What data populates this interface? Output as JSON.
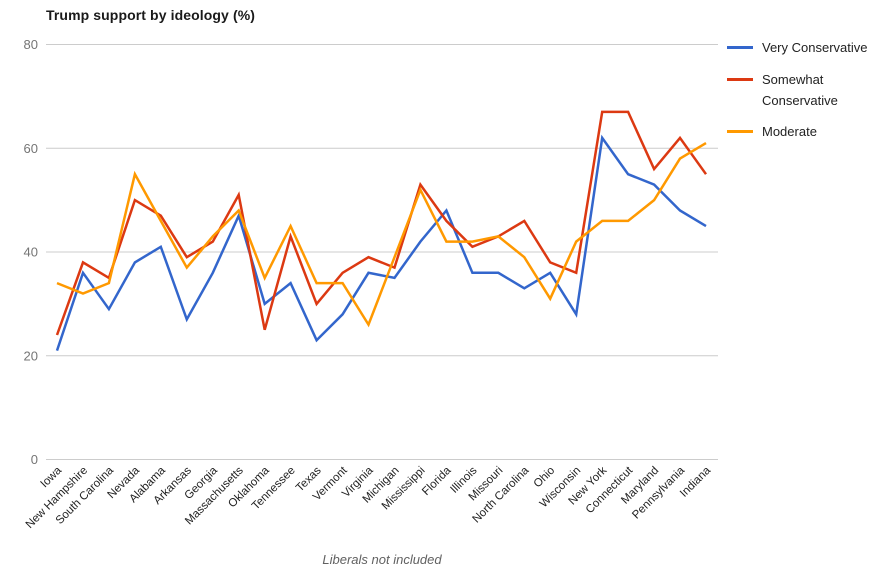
{
  "title": "Trump support by ideology (%)",
  "caption": "Liberals not included",
  "chart_data": {
    "type": "line",
    "title": "Trump support by ideology (%)",
    "annotation": "Liberals not included",
    "xlabel": "",
    "ylabel": "",
    "ylim": [
      0,
      80
    ],
    "y_ticks": [
      0,
      20,
      40,
      60,
      80
    ],
    "grid": "horizontal",
    "legend_position": "right",
    "gridline_color": "#cccccc",
    "y_tick_color": "#757575",
    "x_tick_color": "#222222",
    "categories": [
      "Iowa",
      "New Hampshire",
      "South Carolina",
      "Nevada",
      "Alabama",
      "Arkansas",
      "Georgia",
      "Massachusetts",
      "Oklahoma",
      "Tennessee",
      "Texas",
      "Vermont",
      "Virginia",
      "Michigan",
      "Mississippi",
      "Florida",
      "Illinois",
      "Missouri",
      "North Carolina",
      "Ohio",
      "Wisconsin",
      "New York",
      "Connecticut",
      "Maryland",
      "Pennsylvania",
      "Indiana"
    ],
    "series": [
      {
        "name": "Very Conservative",
        "color": "#3366CC",
        "values": [
          21,
          36,
          29,
          38,
          41,
          27,
          36,
          47,
          30,
          34,
          23,
          28,
          36,
          35,
          42,
          48,
          36,
          36,
          33,
          36,
          28,
          62,
          55,
          53,
          48,
          45
        ]
      },
      {
        "name": "Somewhat Conservative",
        "color": "#DC3912",
        "values": [
          24,
          38,
          35,
          50,
          47,
          39,
          42,
          51,
          25,
          43,
          30,
          36,
          39,
          37,
          53,
          46,
          41,
          43,
          46,
          38,
          36,
          67,
          67,
          56,
          62,
          55
        ]
      },
      {
        "name": "Moderate",
        "color": "#FF9900",
        "values": [
          34,
          32,
          34,
          55,
          46,
          37,
          43,
          48,
          35,
          45,
          34,
          34,
          26,
          39,
          52,
          42,
          42,
          43,
          39,
          31,
          42,
          46,
          46,
          50,
          58,
          61
        ]
      }
    ]
  }
}
